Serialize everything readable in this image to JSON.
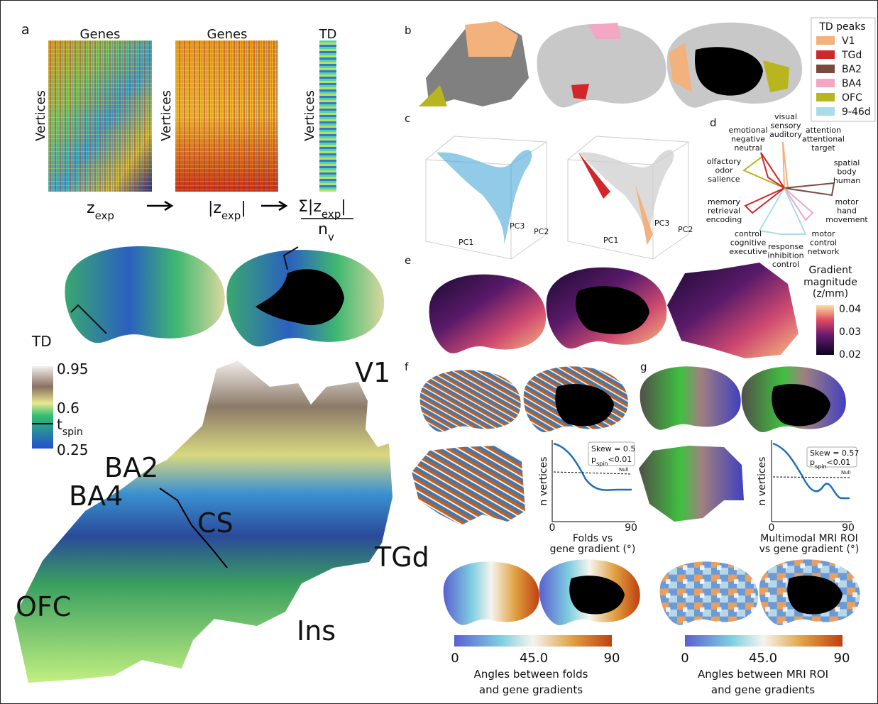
{
  "panel_a": {
    "label": "a",
    "column_titles": [
      "Genes",
      "Genes",
      "TD"
    ],
    "row_labels": [
      "Vertices",
      "Vertices",
      "Vertices"
    ],
    "z_exp": {
      "base": "z",
      "sub": "exp"
    },
    "abs_z": {
      "left": "|z",
      "sub": "exp",
      "right": "|"
    },
    "sum_z": {
      "left": "Σ|z",
      "sub": "exp",
      "right": "|"
    },
    "n_v": {
      "base": "n",
      "sub": "v"
    }
  },
  "td_map": {
    "title": "TD",
    "ticks": [
      "0.95",
      "0.6",
      "0.25"
    ],
    "threshold": {
      "base": "t",
      "sub": "spin"
    },
    "regions": [
      "V1",
      "BA2",
      "BA4",
      "CS",
      "TGd",
      "OFC",
      "Ins"
    ]
  },
  "panel_b": {
    "label": "b",
    "legend_title": "TD peaks",
    "legend": [
      {
        "name": "V1",
        "color": "#f3b27c"
      },
      {
        "name": "TGd",
        "color": "#d2262b"
      },
      {
        "name": "BA2",
        "color": "#7b4a3f"
      },
      {
        "name": "BA4",
        "color": "#f2a7c3"
      },
      {
        "name": "OFC",
        "color": "#b8b51e"
      },
      {
        "name": "9-46d",
        "color": "#a9dbe8"
      }
    ]
  },
  "panel_c": {
    "label": "c",
    "axes": [
      [
        "PC1",
        "PC3",
        "PC2"
      ],
      [
        "PC1",
        "PC3",
        "PC2"
      ]
    ]
  },
  "panel_d": {
    "label": "d",
    "terms": [
      [
        "visual",
        "sensory",
        "auditory"
      ],
      [
        "attention",
        "attentional",
        "target"
      ],
      [
        "spatial",
        "body",
        "human"
      ],
      [
        "motor",
        "hand",
        "movement"
      ],
      [
        "motor",
        "control",
        "network"
      ],
      [
        "response",
        "inhibition",
        "control"
      ],
      [
        "control",
        "cognitive",
        "executive"
      ],
      [
        "memory",
        "retrieval",
        "encoding"
      ],
      [
        "olfactory",
        "odor",
        "salience"
      ],
      [
        "emotional",
        "negative",
        "neutral"
      ]
    ]
  },
  "panel_e": {
    "label": "e",
    "colorbar_title": [
      "Gradient",
      "magnitude",
      "(z/mm)"
    ],
    "ticks": [
      "0.04",
      "0.03",
      "0.02"
    ]
  },
  "panel_f": {
    "label": "f",
    "y_label": "n vertices",
    "x_ticks": [
      "0",
      "90"
    ],
    "skew": "Skew = 0.5",
    "p": {
      "base": "p",
      "sub": "spin",
      "rest": "<0.01"
    },
    "null_label": "Null",
    "x_label": [
      "Folds vs",
      "gene gradient (°)"
    ],
    "colorbar_ticks": [
      "0",
      "45.0",
      "90"
    ],
    "colorbar_label": [
      "Angles between folds",
      "and gene gradients"
    ]
  },
  "panel_g": {
    "label": "g",
    "y_label": "n vertices",
    "x_ticks": [
      "0",
      "90"
    ],
    "skew": "Skew = 0.57",
    "p": {
      "base": "p",
      "sub": "spin",
      "rest": "<0.01"
    },
    "null_label": "Null",
    "x_label": [
      "Multimodal MRI ROI",
      "vs gene gradient (°)"
    ],
    "colorbar_ticks": [
      "0",
      "45.0",
      "90"
    ],
    "colorbar_label": [
      "Angles between MRI ROI",
      "and gene gradients"
    ]
  }
}
